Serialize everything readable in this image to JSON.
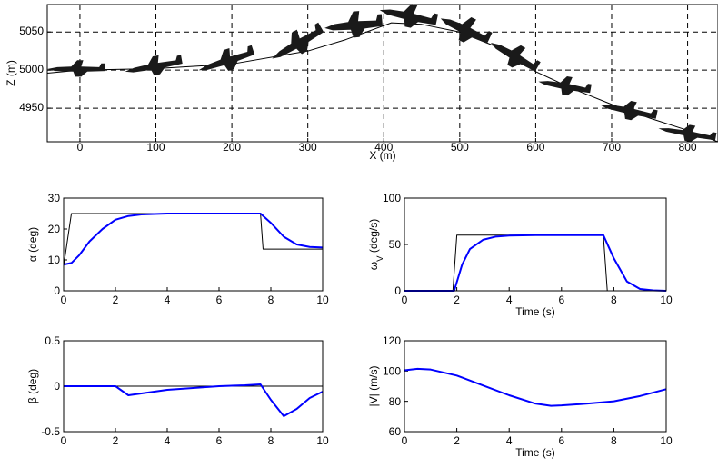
{
  "chart_data": [
    {
      "type": "line",
      "xlabel": "X (m)",
      "ylabel": "Z (m)",
      "grid": true,
      "xlim": [
        -43,
        840
      ],
      "ylim": [
        4906,
        5086
      ],
      "xticks": [
        0,
        100,
        200,
        300,
        400,
        500,
        600,
        700,
        800
      ],
      "yticks": [
        4950,
        5000,
        5050
      ],
      "series": [
        {
          "color": "#000000",
          "x": [
            -43,
            0,
            100,
            200,
            300,
            350,
            410,
            450,
            500,
            550,
            600,
            650,
            700,
            750,
            800,
            840
          ],
          "values": [
            4996,
            5000,
            5002,
            5008,
            5025,
            5040,
            5062,
            5060,
            5050,
            5030,
            4998,
            4975,
            4955,
            4937,
            4921,
            4906
          ]
        }
      ]
    },
    {
      "type": "line",
      "ylabel": "α (deg)",
      "xlim": [
        0,
        10
      ],
      "ylim": [
        0,
        30
      ],
      "xticks": [
        0,
        2,
        4,
        6,
        8,
        10
      ],
      "yticks": [
        0,
        10,
        20,
        30
      ],
      "series": [
        {
          "color": "#000000",
          "x": [
            0,
            0.3,
            7.6,
            7.7,
            10
          ],
          "values": [
            8,
            25,
            25,
            13.5,
            13.5
          ]
        },
        {
          "color": "#0000ff",
          "x": [
            0,
            0.3,
            0.6,
            1,
            1.5,
            2,
            2.5,
            3,
            4,
            5,
            6,
            7,
            7.6,
            8,
            8.5,
            9,
            9.5,
            10
          ],
          "values": [
            8.5,
            9,
            11.5,
            16,
            20,
            23,
            24.2,
            24.7,
            25,
            25,
            25,
            25,
            25,
            22,
            17.5,
            15,
            14.2,
            14
          ]
        }
      ]
    },
    {
      "type": "line",
      "ylabel": [
        "ω",
        "V",
        " (deg/s)"
      ],
      "xlabel": "Time (s)",
      "xlim": [
        0,
        10
      ],
      "ylim": [
        0,
        100
      ],
      "xticks": [
        0,
        2,
        4,
        6,
        8,
        10
      ],
      "yticks": [
        0,
        50,
        100
      ],
      "series": [
        {
          "color": "#000000",
          "x": [
            0,
            1.85,
            2.0,
            7.6,
            7.75,
            10
          ],
          "values": [
            0,
            0,
            60,
            60,
            0,
            0
          ]
        },
        {
          "color": "#0000ff",
          "x": [
            0,
            1.9,
            2.2,
            2.5,
            3,
            3.5,
            4,
            5,
            6,
            7,
            7.6,
            8,
            8.5,
            9,
            9.5,
            10
          ],
          "values": [
            0,
            0,
            28,
            45,
            55,
            58.5,
            59.5,
            60,
            60,
            60,
            60,
            35,
            10,
            2,
            0.5,
            0
          ]
        }
      ]
    },
    {
      "type": "line",
      "ylabel": "β (deg)",
      "xlim": [
        0,
        10
      ],
      "ylim": [
        -0.5,
        0.5
      ],
      "xticks": [
        0,
        2,
        4,
        6,
        8,
        10
      ],
      "yticks": [
        -0.5,
        0,
        0.5
      ],
      "series": [
        {
          "color": "#000000",
          "x": [
            0,
            10
          ],
          "values": [
            0,
            0
          ]
        },
        {
          "color": "#0000ff",
          "x": [
            0,
            2,
            2.5,
            3,
            4,
            5,
            6,
            7,
            7.6,
            8,
            8.5,
            9,
            9.5,
            10
          ],
          "values": [
            0,
            0,
            -0.1,
            -0.08,
            -0.04,
            -0.02,
            0,
            0.01,
            0.02,
            -0.15,
            -0.33,
            -0.25,
            -0.13,
            -0.06
          ]
        }
      ]
    },
    {
      "type": "line",
      "ylabel": "|V| (m/s)",
      "xlabel": "Time (s)",
      "xlim": [
        0,
        10
      ],
      "ylim": [
        60,
        120
      ],
      "xticks": [
        0,
        2,
        4,
        6,
        8,
        10
      ],
      "yticks": [
        60,
        80,
        100,
        120
      ],
      "series": [
        {
          "color": "#0000ff",
          "x": [
            0,
            0.5,
            1,
            2,
            3,
            4,
            5,
            5.6,
            6,
            7,
            8,
            9,
            10
          ],
          "values": [
            100.5,
            101.5,
            101,
            97,
            90.5,
            84,
            78.5,
            77,
            77.3,
            78.5,
            80,
            83.5,
            88
          ]
        }
      ]
    }
  ]
}
